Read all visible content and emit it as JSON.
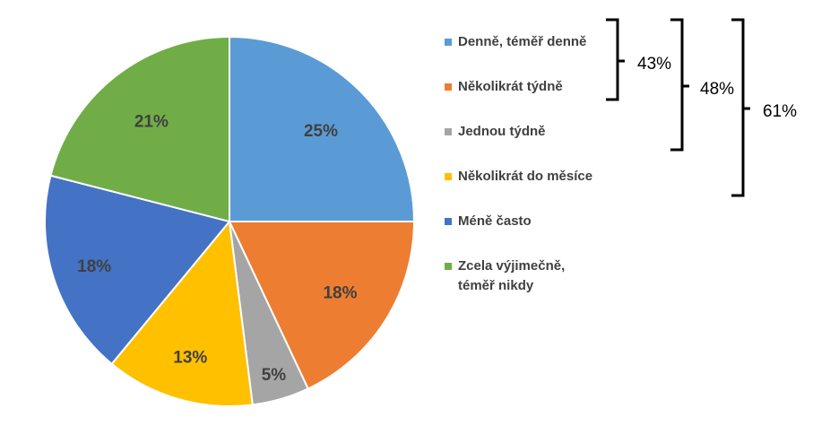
{
  "colors": [
    "#5B9BD5",
    "#ED7D31",
    "#A5A5A5",
    "#FFC000",
    "#4472C4",
    "#70AD47"
  ],
  "chart_data": {
    "type": "pie",
    "categories": [
      "Denně, téměř denně",
      "Několikrát týdně",
      "Jednou týdně",
      "Několikrát do měsíce",
      "Méně často",
      "Zcela výjimečně, téměř nikdy"
    ],
    "values": [
      25,
      18,
      5,
      13,
      18,
      21
    ],
    "data_labels": [
      "25%",
      "18%",
      "5%",
      "13%",
      "18%",
      "21%"
    ],
    "legend_position": "right",
    "annotations": [
      {
        "label": "43%",
        "covers": [
          "Denně, téměř denně",
          "Několikrát týdně"
        ]
      },
      {
        "label": "48%",
        "covers": [
          "Denně, téměř denně",
          "Několikrát týdně",
          "Jednou týdně"
        ]
      },
      {
        "label": "61%",
        "covers": [
          "Denně, téměř denně",
          "Několikrát týdně",
          "Jednou týdně",
          "Několikrát do měsíce"
        ]
      }
    ]
  },
  "legend": [
    {
      "label": "Denně, téměř denně"
    },
    {
      "label": "Několikrát týdně"
    },
    {
      "label": "Jednou týdně"
    },
    {
      "label": "Několikrát do měsíce"
    },
    {
      "label": "Méně často"
    },
    {
      "label": "Zcela výjimečně,\ntéměř nikdy"
    }
  ]
}
